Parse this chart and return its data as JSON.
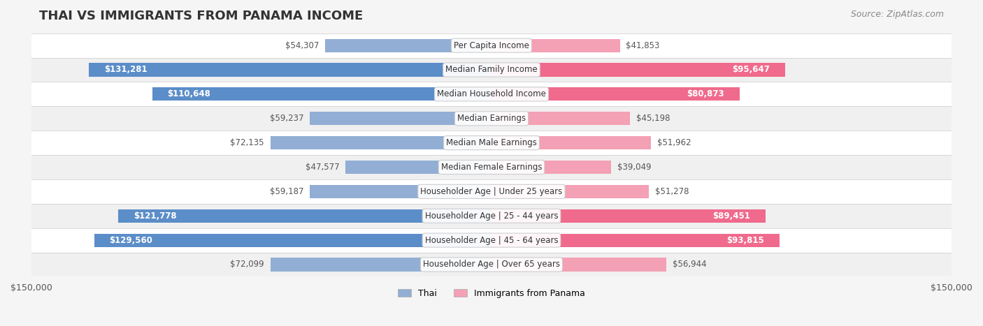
{
  "title": "THAI VS IMMIGRANTS FROM PANAMA INCOME",
  "source": "Source: ZipAtlas.com",
  "categories": [
    "Per Capita Income",
    "Median Family Income",
    "Median Household Income",
    "Median Earnings",
    "Median Male Earnings",
    "Median Female Earnings",
    "Householder Age | Under 25 years",
    "Householder Age | 25 - 44 years",
    "Householder Age | 45 - 64 years",
    "Householder Age | Over 65 years"
  ],
  "thai_values": [
    54307,
    131281,
    110648,
    59237,
    72135,
    47577,
    59187,
    121778,
    129560,
    72099
  ],
  "panama_values": [
    41853,
    95647,
    80873,
    45198,
    51962,
    39049,
    51278,
    89451,
    93815,
    56944
  ],
  "thai_color": "#92aed4",
  "panama_color": "#f4a0b5",
  "thai_color_dark": "#5b8dc8",
  "panama_color_dark": "#ef6a8c",
  "bar_height": 0.55,
  "xlim": 150000,
  "bg_color": "#f5f5f5",
  "row_bg_even": "#ffffff",
  "row_bg_odd": "#f0f0f0",
  "thai_label": "Thai",
  "panama_label": "Immigrants from Panama",
  "title_fontsize": 13,
  "source_fontsize": 9,
  "label_fontsize": 8.5,
  "tick_fontsize": 9,
  "legend_fontsize": 9
}
